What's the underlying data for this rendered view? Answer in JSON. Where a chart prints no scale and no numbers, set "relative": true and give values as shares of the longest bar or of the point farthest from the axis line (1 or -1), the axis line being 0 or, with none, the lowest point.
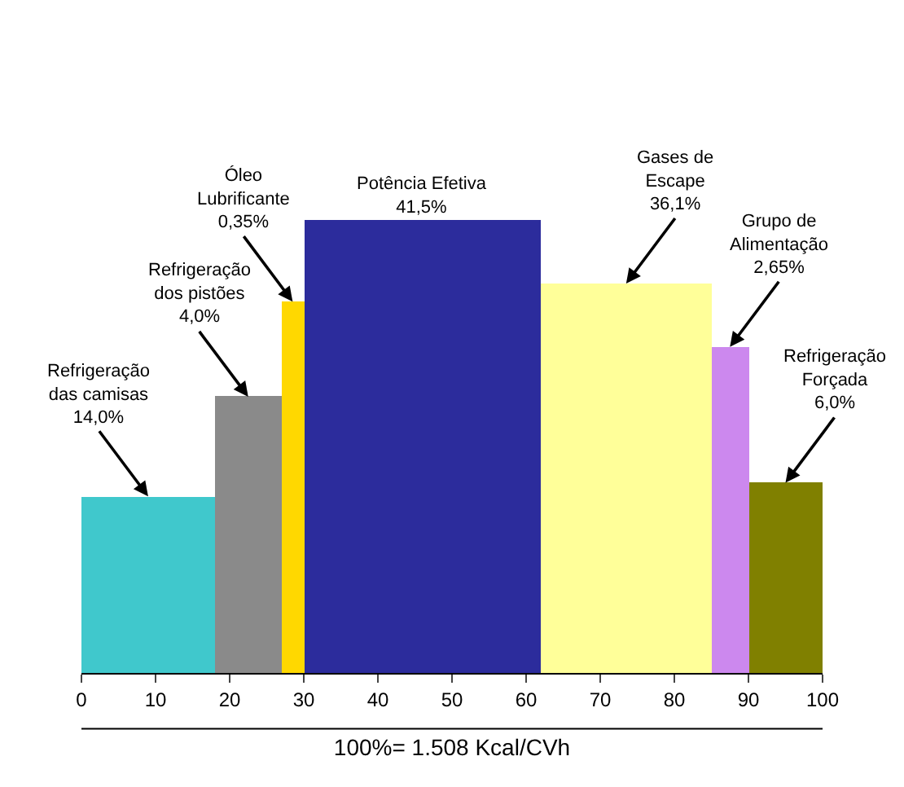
{
  "chart_data": {
    "type": "bar",
    "relative": true,
    "x": [
      9,
      22.5,
      28.5,
      46,
      73.5,
      87.5,
      95
    ],
    "values": [
      0.39,
      0.61,
      0.82,
      1,
      0.86,
      0.72,
      0.42
    ],
    "colors": [
      "#40c8cc",
      "#8a8a8a",
      "#ffd800",
      "#2c2c9c",
      "#ffff99",
      "#cc88ee",
      "#808000"
    ],
    "xlim": [
      0,
      100
    ],
    "xticks": [
      0,
      10,
      20,
      30,
      40,
      50,
      60,
      70,
      80,
      90,
      100
    ],
    "xlabel": "100%= 1.508 Kcal/CVh",
    "annotations": [
      "Refrigeração\ndas camisas\n14,0%",
      "Refrigeração\ndos pistões\n4,0%",
      "Óleo\nLubrificante\n0,35%",
      "Potência Efetiva\n41,5%",
      "Gases de\nEscape\n36,1%",
      "Grupo de\nAlimentação\n2,65%",
      "Refrigeração\nForçada\n6,0%"
    ]
  }
}
